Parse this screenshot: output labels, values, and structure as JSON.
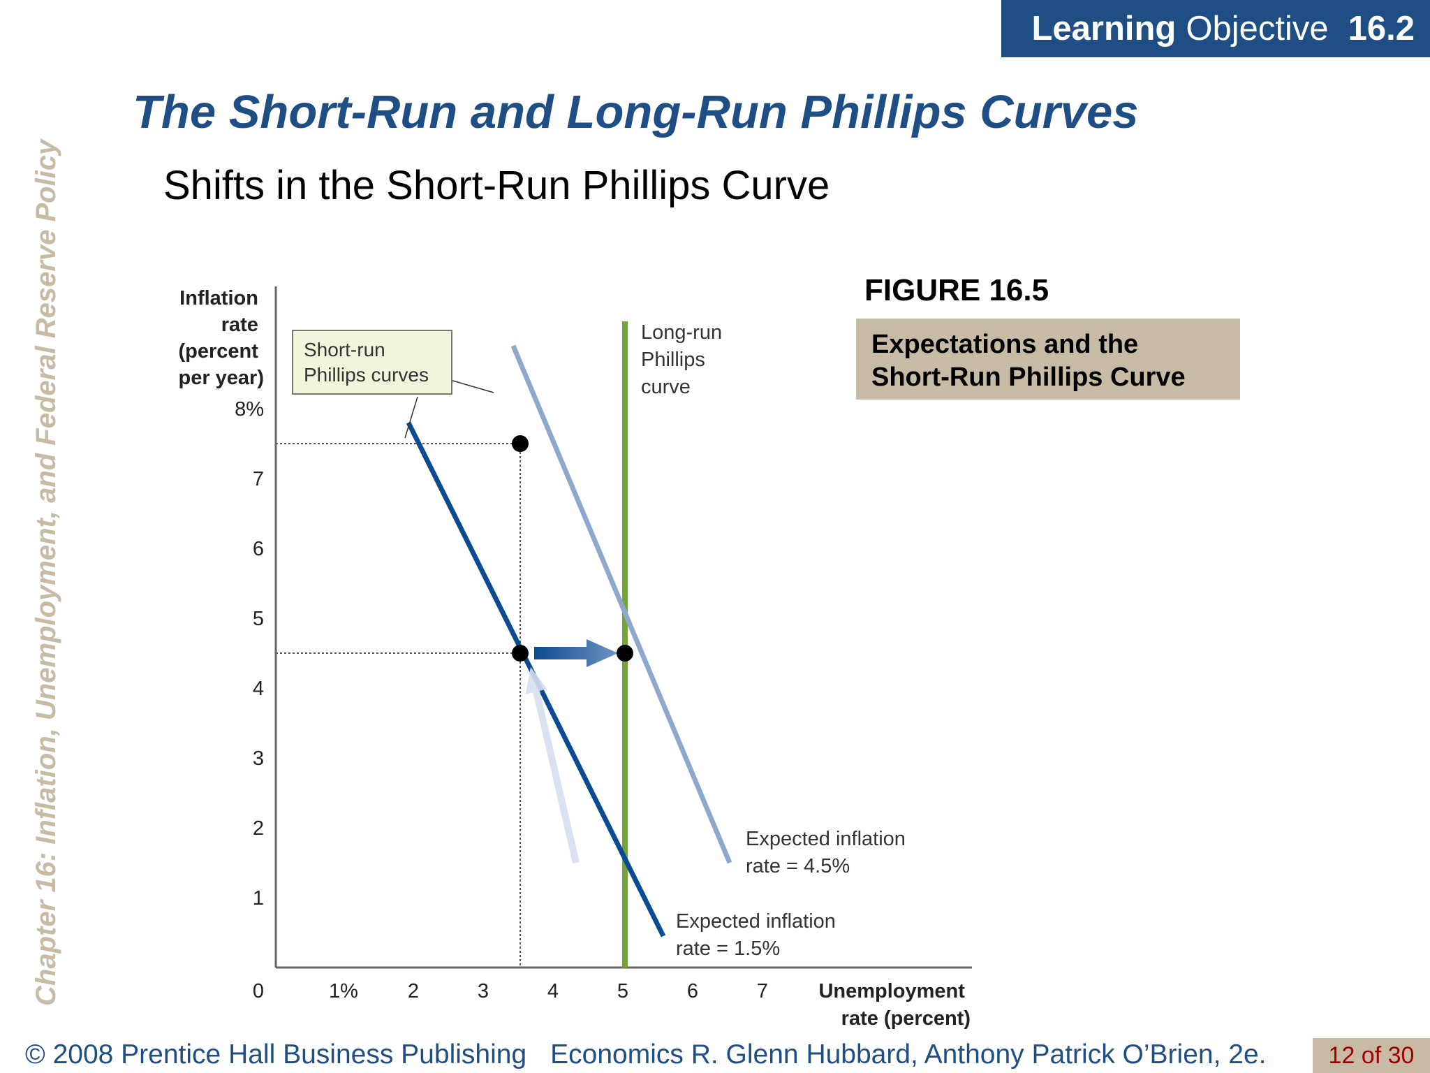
{
  "header": {
    "learning_label": "Learning",
    "objective_label": "Objective",
    "objective_number": "16.2"
  },
  "sidebar": {
    "chapter_text": "Chapter 16:  Inflation, Unemployment, and Federal Reserve Policy"
  },
  "slide": {
    "title": "The Short-Run and Long-Run Phillips Curves",
    "subtitle": "Shifts in the Short-Run Phillips Curve"
  },
  "figure": {
    "label": "FIGURE 16.5",
    "caption_line1": "Expectations and the",
    "caption_line2": "Short-Run Phillips Curve"
  },
  "chart_data": {
    "type": "line",
    "ylabel_lines": [
      "Inflation",
      "rate",
      "(percent",
      "per year)"
    ],
    "xlabel_lines": [
      "Unemployment",
      "rate (percent)"
    ],
    "origin_label": "0",
    "x_tick_labels": [
      "1%",
      "2",
      "3",
      "4",
      "5",
      "6",
      "7"
    ],
    "x_ticks": [
      1,
      2,
      3,
      4,
      5,
      6,
      7
    ],
    "y_tick_labels": [
      "1",
      "2",
      "3",
      "4",
      "5",
      "6",
      "7",
      "8%"
    ],
    "y_ticks": [
      1,
      2,
      3,
      4,
      5,
      6,
      7,
      8
    ],
    "xlim": [
      0,
      7.5
    ],
    "ylim": [
      0,
      8.8
    ],
    "series": [
      {
        "name": "Expected inflation rate = 1.5%",
        "label_lines": [
          "Expected inflation",
          "rate = 1.5%"
        ],
        "color": "#0a4b91",
        "x": [
          1.9,
          5.55
        ],
        "y": [
          7.8,
          0.45
        ]
      },
      {
        "name": "Expected inflation rate = 4.5%",
        "label_lines": [
          "Expected inflation",
          "rate = 4.5%"
        ],
        "color": "#8ea8cc",
        "x": [
          3.4,
          6.5
        ],
        "y": [
          8.9,
          1.5
        ]
      }
    ],
    "long_run": {
      "label_lines": [
        "Long-run",
        "Phillips",
        "curve"
      ],
      "color": "#76a33a",
      "x": 5.0
    },
    "callout_lines": [
      "Short-run",
      "Phillips curves"
    ],
    "points": [
      {
        "x": 3.5,
        "y": 7.5
      },
      {
        "x": 3.5,
        "y": 4.5
      },
      {
        "x": 5.0,
        "y": 4.5
      }
    ],
    "guides": [
      {
        "x": 3.5,
        "y": 7.5
      },
      {
        "x": 3.5,
        "y": 4.5
      }
    ],
    "arrows": [
      {
        "from": [
          3.7,
          4.5
        ],
        "to": [
          4.9,
          4.5
        ],
        "style": "solid"
      },
      {
        "from": [
          4.3,
          1.5
        ],
        "to": [
          3.65,
          4.3
        ],
        "style": "light"
      }
    ]
  },
  "footer": {
    "copyright": "© 2008 Prentice Hall Business Publishing",
    "book": "Economics  R. Glenn Hubbard, Anthony Patrick O’Brien, 2e.",
    "page": "12 of 30"
  }
}
